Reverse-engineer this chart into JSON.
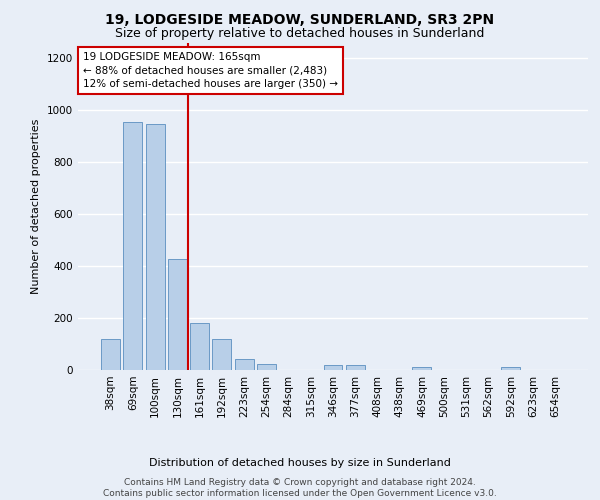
{
  "title": "19, LODGESIDE MEADOW, SUNDERLAND, SR3 2PN",
  "subtitle": "Size of property relative to detached houses in Sunderland",
  "xlabel": "Distribution of detached houses by size in Sunderland",
  "ylabel": "Number of detached properties",
  "categories": [
    "38sqm",
    "69sqm",
    "100sqm",
    "130sqm",
    "161sqm",
    "192sqm",
    "223sqm",
    "254sqm",
    "284sqm",
    "315sqm",
    "346sqm",
    "377sqm",
    "408sqm",
    "438sqm",
    "469sqm",
    "500sqm",
    "531sqm",
    "562sqm",
    "592sqm",
    "623sqm",
    "654sqm"
  ],
  "values": [
    120,
    955,
    948,
    428,
    182,
    120,
    42,
    22,
    0,
    0,
    18,
    18,
    0,
    0,
    10,
    0,
    0,
    0,
    10,
    0,
    0
  ],
  "bar_color": "#b8cfe8",
  "bar_edge_color": "#5a8fc0",
  "vline_color": "#cc0000",
  "vline_x_index": 3.5,
  "annotation_text": "19 LODGESIDE MEADOW: 165sqm\n← 88% of detached houses are smaller (2,483)\n12% of semi-detached houses are larger (350) →",
  "annotation_box_color": "white",
  "annotation_box_edge_color": "#cc0000",
  "ylim": [
    0,
    1260
  ],
  "yticks": [
    0,
    200,
    400,
    600,
    800,
    1000,
    1200
  ],
  "footer": "Contains HM Land Registry data © Crown copyright and database right 2024.\nContains public sector information licensed under the Open Government Licence v3.0.",
  "background_color": "#e8eef7",
  "grid_color": "#ffffff",
  "title_fontsize": 10,
  "subtitle_fontsize": 9,
  "axis_label_fontsize": 8,
  "tick_fontsize": 7.5,
  "footer_fontsize": 6.5,
  "annotation_fontsize": 7.5
}
